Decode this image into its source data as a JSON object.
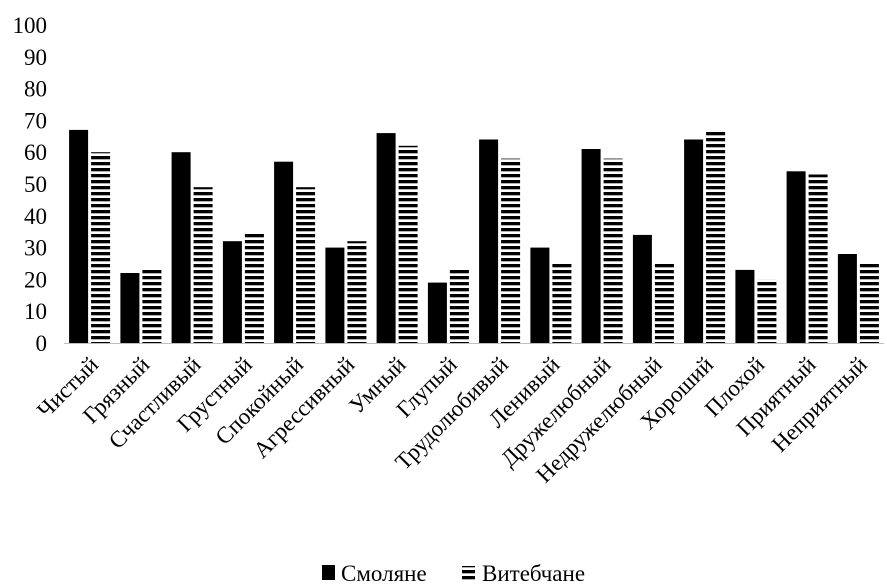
{
  "chart_data": {
    "type": "bar",
    "title": "",
    "xlabel": "",
    "ylabel": "",
    "ylim": [
      0,
      100
    ],
    "ytick_step": 10,
    "grid": false,
    "legend_position": "bottom",
    "categories": [
      "Чистый",
      "Грязный",
      "Счастливый",
      "Грустный",
      "Спокойный",
      "Агрессивный",
      "Умный",
      "Глупый",
      "Трудолюбивый",
      "Ленивый",
      "Дружелюбный",
      "Недружелюбный",
      "Хороший",
      "Плохой",
      "Приятный",
      "Неприятный"
    ],
    "series": [
      {
        "name": "Смоляне",
        "style": "solid",
        "color": "#000000",
        "values": [
          67,
          22,
          60,
          32,
          57,
          30,
          66,
          19,
          64,
          30,
          61,
          34,
          64,
          23,
          54,
          28
        ]
      },
      {
        "name": "Витебчане",
        "style": "horizontal-stripes",
        "color": "#000000",
        "values": [
          60,
          23,
          49,
          35,
          49,
          32,
          62,
          23,
          58,
          25,
          58,
          25,
          67,
          20,
          53,
          25
        ]
      }
    ]
  }
}
